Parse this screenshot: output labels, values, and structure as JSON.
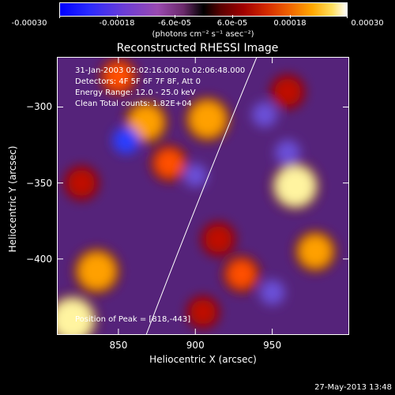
{
  "colorbar": {
    "ticks": [
      "-0.00030",
      "-0.00018",
      "-6.0e-05",
      "6.0e-05",
      "0.00018",
      "0.00030"
    ],
    "units": "(photons cm⁻² s⁻¹ asec⁻²)"
  },
  "chart_data": {
    "type": "heatmap",
    "title": "Reconstructed RHESSI Image",
    "xlabel": "Heliocentric X (arcsec)",
    "ylabel": "Heliocentric Y (arcsec)",
    "xlim": [
      810,
      1000
    ],
    "ylim": [
      -450,
      -267
    ],
    "xticks": [
      850,
      900,
      950
    ],
    "yticks": [
      -300,
      -350,
      -400
    ],
    "colorbar_range": [
      -0.0003,
      0.0003
    ],
    "annotations": {
      "time": "31-Jan-2003 02:02:16.000 to 02:06:48.000",
      "detectors": "Detectors: 4F 5F 6F 7F 8F, Att 0",
      "energy": "Energy Range: 12.0 - 25.0 keV",
      "clean": "Clean     Total counts: 1.82E+04",
      "peak": "Position of Peak = [818,-443]"
    },
    "limb_curve": [
      [
        868,
        -450
      ],
      [
        900,
        -365
      ],
      [
        940,
        -267
      ]
    ],
    "hot_spots": [
      {
        "x": 820,
        "y": -440,
        "v": 0.0003
      },
      {
        "x": 836,
        "y": -408,
        "v": 0.00025
      },
      {
        "x": 868,
        "y": -310,
        "v": 0.00022
      },
      {
        "x": 883,
        "y": -337,
        "v": 0.00015
      },
      {
        "x": 908,
        "y": -308,
        "v": 0.00024
      },
      {
        "x": 915,
        "y": -387,
        "v": 0.00012
      },
      {
        "x": 930,
        "y": -410,
        "v": 0.00015
      },
      {
        "x": 965,
        "y": -352,
        "v": 0.00028
      },
      {
        "x": 978,
        "y": -395,
        "v": 0.0002
      },
      {
        "x": 826,
        "y": -350,
        "v": 0.00012
      },
      {
        "x": 960,
        "y": -290,
        "v": 0.00012
      },
      {
        "x": 850,
        "y": -280,
        "v": 0.00015
      },
      {
        "x": 905,
        "y": -435,
        "v": 0.0001
      }
    ],
    "cold_spots": [
      {
        "x": 855,
        "y": -322,
        "v": -0.00012
      },
      {
        "x": 945,
        "y": -305,
        "v": -0.0001
      },
      {
        "x": 960,
        "y": -330,
        "v": -0.0001
      },
      {
        "x": 900,
        "y": -345,
        "v": -8e-05
      },
      {
        "x": 950,
        "y": -422,
        "v": -0.0001
      }
    ]
  },
  "footer": {
    "timestamp": "27-May-2013 13:48"
  }
}
